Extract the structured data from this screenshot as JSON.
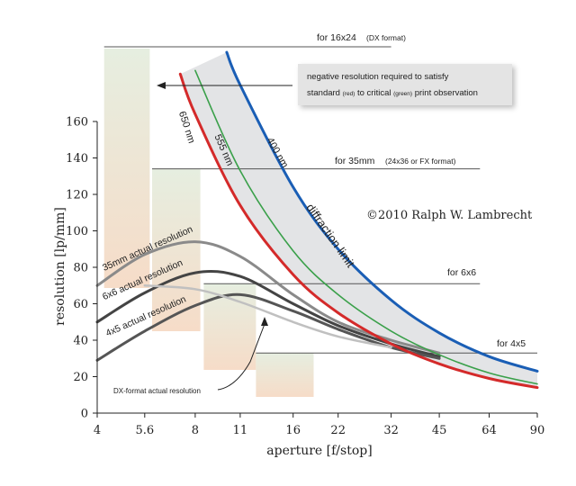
{
  "chart_data": {
    "type": "line",
    "xlabel": "aperture [f/stop]",
    "ylabel": "resolution [lp/mm]",
    "x_scale": "log2",
    "xlim": [
      4,
      90
    ],
    "ylim": [
      0,
      160
    ],
    "x_ticks": [
      "4",
      "5.6",
      "8",
      "11",
      "16",
      "22",
      "32",
      "45",
      "64",
      "90"
    ],
    "x_tick_values": [
      4,
      5.6,
      8,
      11,
      16,
      22,
      32,
      45,
      64,
      90
    ],
    "y_ticks": [
      0,
      20,
      40,
      60,
      80,
      100,
      120,
      140,
      160
    ],
    "grid": false,
    "copyright": "©2010 Ralph W. Lambrecht",
    "band_label": "diffraction limit",
    "callout": {
      "line1": "negative resolution required to satisfy",
      "line2a": "standard",
      "line2b": "(red)",
      "line2c": "to critical",
      "line2d": "(green)",
      "line2e": "print observation"
    },
    "diffraction_series": [
      {
        "name": "650 nm",
        "color": "#d42a2a",
        "x": [
          7.2,
          8,
          11,
          16,
          22,
          32,
          45,
          64,
          90
        ],
        "y": [
          186,
          164,
          114,
          76,
          55,
          38,
          27,
          19,
          14
        ]
      },
      {
        "name": "555 nm",
        "color": "#3aa04a",
        "x": [
          8,
          11,
          16,
          22,
          32,
          45,
          64,
          90
        ],
        "y": [
          188,
          133,
          89,
          65,
          45,
          32,
          22,
          16
        ]
      },
      {
        "name": "400 nm",
        "color": "#1a5eb5",
        "x": [
          10,
          11,
          16,
          22,
          32,
          45,
          64,
          90
        ],
        "y": [
          198,
          180,
          124,
          90,
          62,
          44,
          31,
          23
        ]
      }
    ],
    "actual_series": [
      {
        "name": "35mm actual resolution",
        "color": "#8a8a8a",
        "x": [
          4,
          5.6,
          8,
          11,
          16,
          22,
          32,
          45
        ],
        "y": [
          70,
          87,
          94,
          86,
          65,
          50,
          40,
          33
        ]
      },
      {
        "name": "6x6 actual resolution",
        "color": "#444444",
        "x": [
          4,
          5.6,
          8,
          11,
          16,
          22,
          32,
          45
        ],
        "y": [
          50,
          66,
          77,
          75,
          60,
          48,
          38,
          31
        ]
      },
      {
        "name": "4x5 actual resolution",
        "color": "#555555",
        "x": [
          4,
          5.6,
          8,
          11,
          16,
          22,
          32,
          45
        ],
        "y": [
          29,
          45,
          59,
          65,
          56,
          46,
          36,
          30
        ]
      },
      {
        "name": "DX-format actual resolution",
        "color": "#c0c0c0",
        "x": [
          5.6,
          8,
          11,
          16,
          22,
          32
        ],
        "y": [
          70,
          68,
          61,
          50,
          42,
          36
        ]
      }
    ],
    "format_requirements": [
      {
        "label": "for 16x24",
        "sublabel": "(DX format)",
        "y": 200,
        "x_start": 4.2,
        "x_end": 32,
        "bar_x": [
          4.2,
          5.8
        ],
        "bar_top": 200
      },
      {
        "label": "for 35mm",
        "sublabel": "(24x36 or FX format)",
        "y": 134,
        "x_start": 5.9,
        "x_end": 60,
        "bar_x": [
          5.9,
          8.3
        ],
        "bar_top": 134
      },
      {
        "label": "for 6x6",
        "sublabel": "",
        "y": 71,
        "x_start": 8.5,
        "x_end": 60,
        "bar_x": [
          8.5,
          12.3
        ],
        "bar_top": 71
      },
      {
        "label": "for 4x5",
        "sublabel": "",
        "y": 33,
        "x_start": 12.3,
        "x_end": 90,
        "bar_x": [
          12.3,
          18.5
        ],
        "bar_top": 33
      }
    ]
  }
}
